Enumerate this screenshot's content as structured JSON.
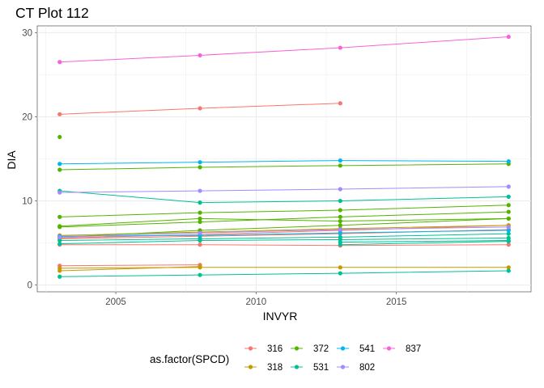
{
  "chart_data": {
    "type": "line",
    "title": "CT Plot 112",
    "xlabel": "INVYR",
    "ylabel": "DIA",
    "xlim": [
      2002.2,
      2019.8
    ],
    "ylim": [
      -0.8,
      30.8
    ],
    "xticks": [
      2005,
      2010,
      2015
    ],
    "yticks": [
      0,
      10,
      20,
      30
    ],
    "grid": true,
    "legend": {
      "title": "as.factor(SPCD)",
      "position": "bottom",
      "entries": [
        {
          "label": "316",
          "color": "#F8766D"
        },
        {
          "label": "318",
          "color": "#C49A00"
        },
        {
          "label": "372",
          "color": "#53B400"
        },
        {
          "label": "531",
          "color": "#00C094"
        },
        {
          "label": "541",
          "color": "#00B6EB"
        },
        {
          "label": "802",
          "color": "#A58AFF"
        },
        {
          "label": "837",
          "color": "#FB61D7"
        }
      ]
    },
    "series": [
      {
        "name": "316",
        "color": "#F8766D",
        "points": [
          [
            2003,
            20.3
          ],
          [
            2008,
            21.0
          ],
          [
            2013,
            21.6
          ]
        ]
      },
      {
        "name": "316",
        "color": "#F8766D",
        "points": [
          [
            2003,
            5.6
          ],
          [
            2008,
            6.0
          ],
          [
            2013,
            6.5
          ],
          [
            2019,
            7.1
          ]
        ]
      },
      {
        "name": "316",
        "color": "#F8766D",
        "points": [
          [
            2003,
            4.8
          ],
          [
            2008,
            4.8
          ],
          [
            2013,
            4.7
          ],
          [
            2019,
            4.8
          ]
        ]
      },
      {
        "name": "316",
        "color": "#F8766D",
        "points": [
          [
            2003,
            2.3
          ],
          [
            2008,
            2.4
          ]
        ]
      },
      {
        "name": "316",
        "color": "#F8766D",
        "points": [
          [
            2003,
            5.5
          ],
          [
            2008,
            5.8
          ],
          [
            2013,
            6.1
          ],
          [
            2019,
            6.6
          ]
        ]
      },
      {
        "name": "318",
        "color": "#C49A00",
        "points": [
          [
            2003,
            2.0
          ],
          [
            2008,
            2.1
          ],
          [
            2013,
            2.1
          ],
          [
            2019,
            2.1
          ]
        ]
      },
      {
        "name": "318",
        "color": "#C49A00",
        "points": [
          [
            2003,
            1.7
          ],
          [
            2008,
            2.2
          ]
        ]
      },
      {
        "name": "318",
        "color": "#C49A00",
        "points": [
          [
            2003,
            5.9
          ],
          [
            2008,
            6.3
          ],
          [
            2013,
            6.7
          ],
          [
            2019,
            7.1
          ]
        ]
      },
      {
        "name": "372",
        "color": "#53B400",
        "points": [
          [
            2003,
            17.6
          ]
        ]
      },
      {
        "name": "372",
        "color": "#53B400",
        "points": [
          [
            2003,
            13.7
          ],
          [
            2008,
            14.0
          ],
          [
            2013,
            14.2
          ],
          [
            2019,
            14.4
          ]
        ]
      },
      {
        "name": "372",
        "color": "#53B400",
        "points": [
          [
            2003,
            8.1
          ],
          [
            2008,
            8.6
          ],
          [
            2013,
            8.9
          ],
          [
            2019,
            9.5
          ]
        ]
      },
      {
        "name": "372",
        "color": "#53B400",
        "points": [
          [
            2003,
            6.9
          ],
          [
            2008,
            7.5
          ],
          [
            2013,
            8.1
          ],
          [
            2019,
            8.7
          ]
        ]
      },
      {
        "name": "372",
        "color": "#53B400",
        "points": [
          [
            2003,
            5.7
          ],
          [
            2008,
            6.5
          ],
          [
            2013,
            7.1
          ],
          [
            2019,
            7.9
          ]
        ]
      },
      {
        "name": "372",
        "color": "#53B400",
        "points": [
          [
            2003,
            7.0
          ],
          [
            2008,
            7.9
          ],
          [
            2013,
            7.6
          ],
          [
            2019,
            7.9
          ]
        ]
      },
      {
        "name": "531",
        "color": "#00C094",
        "points": [
          [
            2003,
            11.2
          ],
          [
            2008,
            9.8
          ],
          [
            2013,
            10.0
          ],
          [
            2019,
            10.5
          ]
        ]
      },
      {
        "name": "531",
        "color": "#00C094",
        "points": [
          [
            2003,
            1.0
          ],
          [
            2008,
            1.2
          ],
          [
            2013,
            1.4
          ],
          [
            2019,
            1.7
          ]
        ]
      },
      {
        "name": "531",
        "color": "#00C094",
        "points": [
          [
            2003,
            5.3
          ],
          [
            2008,
            5.5
          ],
          [
            2013,
            5.7
          ],
          [
            2019,
            6.1
          ]
        ]
      },
      {
        "name": "531",
        "color": "#00C094",
        "points": [
          [
            2003,
            4.9
          ],
          [
            2008,
            5.3
          ],
          [
            2013,
            5.4
          ],
          [
            2019,
            5.6
          ]
        ]
      },
      {
        "name": "531",
        "color": "#00C094",
        "points": [
          [
            2013,
            5.1
          ],
          [
            2019,
            5.3
          ]
        ]
      },
      {
        "name": "531",
        "color": "#00C094",
        "points": [
          [
            2013,
            4.8
          ],
          [
            2019,
            5.2
          ]
        ]
      },
      {
        "name": "541",
        "color": "#00B6EB",
        "points": [
          [
            2003,
            14.4
          ],
          [
            2008,
            14.6
          ],
          [
            2013,
            14.8
          ],
          [
            2019,
            14.7
          ]
        ]
      },
      {
        "name": "541",
        "color": "#00B6EB",
        "points": [
          [
            2003,
            5.8
          ],
          [
            2008,
            5.9
          ],
          [
            2013,
            6.2
          ],
          [
            2019,
            6.5
          ]
        ]
      },
      {
        "name": "802",
        "color": "#A58AFF",
        "points": [
          [
            2003,
            11.0
          ],
          [
            2008,
            11.2
          ],
          [
            2013,
            11.4
          ],
          [
            2019,
            11.7
          ]
        ]
      },
      {
        "name": "802",
        "color": "#A58AFF",
        "points": [
          [
            2003,
            5.7
          ],
          [
            2008,
            6.2
          ],
          [
            2013,
            6.6
          ],
          [
            2019,
            6.9
          ]
        ]
      },
      {
        "name": "837",
        "color": "#FB61D7",
        "points": [
          [
            2003,
            26.5
          ],
          [
            2008,
            27.3
          ],
          [
            2013,
            28.2
          ],
          [
            2019,
            29.5
          ]
        ]
      }
    ]
  }
}
